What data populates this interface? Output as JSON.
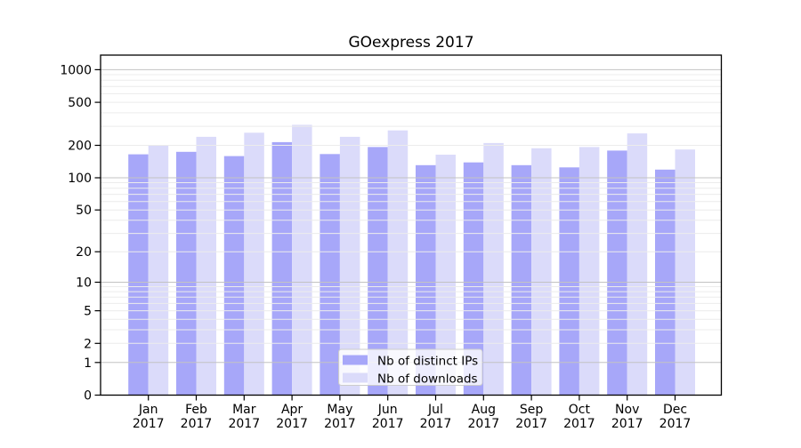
{
  "chart_data": {
    "type": "bar",
    "title": "GOexpress 2017",
    "categories": [
      "Jan",
      "Feb",
      "Mar",
      "Apr",
      "May",
      "Jun",
      "Jul",
      "Aug",
      "Sep",
      "Oct",
      "Nov",
      "Dec"
    ],
    "category_year": "2017",
    "series": [
      {
        "name": "Nb of distinct IPs",
        "color": "#a7a7f9",
        "values": [
          165,
          174,
          159,
          214,
          166,
          193,
          131,
          139,
          131,
          125,
          179,
          119
        ]
      },
      {
        "name": "Nb of downloads",
        "color": "#dbdbfa",
        "values": [
          200,
          240,
          262,
          310,
          240,
          275,
          164,
          210,
          188,
          193,
          258,
          183
        ]
      }
    ],
    "xlabel": "",
    "ylabel": "",
    "yscale": "log1p",
    "ylim": [
      0,
      1350
    ],
    "yticks": [
      0,
      1,
      2,
      5,
      10,
      20,
      50,
      100,
      200,
      500,
      1000
    ],
    "grid": true,
    "legend_position": "lower center inside",
    "axis_color": "#000000",
    "major_grid_color": "#c3c3c3",
    "minor_grid_color": "#ececec",
    "background_color": "#ffffff"
  }
}
